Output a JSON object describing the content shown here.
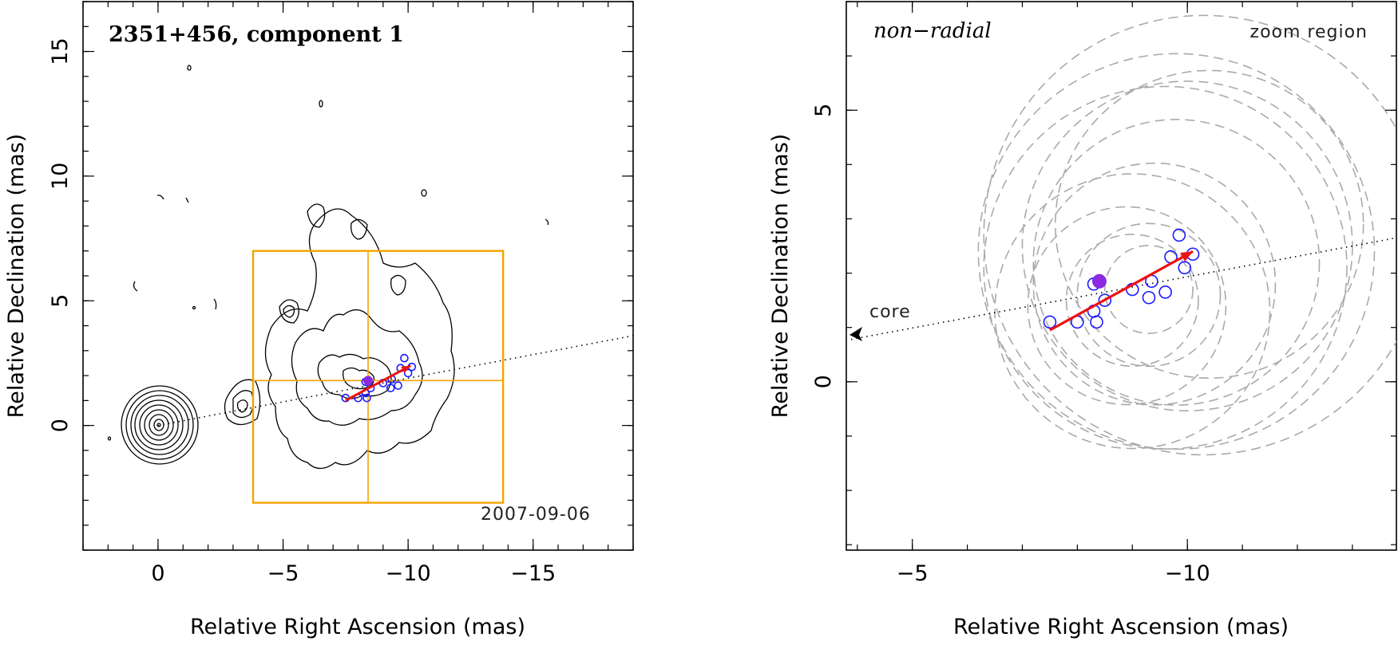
{
  "chart_data": [
    {
      "type": "scatter",
      "title": "2351+456, component 1",
      "epoch_label": "2007-09-06",
      "xlabel": "Relative Right Ascension (mas)",
      "ylabel": "Relative Declination (mas)",
      "xlim": [
        3,
        -19
      ],
      "ylim": [
        -5,
        17
      ],
      "xticks": [
        0,
        -5,
        -10,
        -15
      ],
      "yticks": [
        0,
        5,
        10,
        15
      ],
      "xtick_labels": [
        "0",
        "−5",
        "−10",
        "−15"
      ],
      "ytick_labels": [
        "0",
        "5",
        "10",
        "15"
      ],
      "zoom_box": {
        "x": [
          -3.8,
          -13.8
        ],
        "y": [
          -3.1,
          7.0
        ],
        "cross_x": -8.4,
        "cross_y": 1.8
      },
      "trajectory_line": {
        "x": [
          0,
          -19
        ],
        "y": [
          0,
          3.6
        ]
      },
      "motion_arrow": {
        "from": [
          -7.5,
          1.0
        ],
        "to": [
          -10.1,
          2.4
        ],
        "color": "#ee1111"
      },
      "positions_open": [
        {
          "x": -7.5,
          "y": 1.1
        },
        {
          "x": -8.0,
          "y": 1.1
        },
        {
          "x": -8.3,
          "y": 1.3
        },
        {
          "x": -8.35,
          "y": 1.1
        },
        {
          "x": -8.5,
          "y": 1.5
        },
        {
          "x": -9.0,
          "y": 1.7
        },
        {
          "x": -9.3,
          "y": 1.5
        },
        {
          "x": -9.35,
          "y": 1.85
        },
        {
          "x": -9.6,
          "y": 1.6
        },
        {
          "x": -9.7,
          "y": 2.3
        },
        {
          "x": -9.85,
          "y": 2.7
        },
        {
          "x": -10.0,
          "y": 2.1
        },
        {
          "x": -10.15,
          "y": 2.35
        },
        {
          "x": -8.3,
          "y": 1.75
        }
      ],
      "position_filled": {
        "x": -8.4,
        "y": 1.8
      }
    },
    {
      "type": "scatter",
      "title": "non−radial",
      "zoom_label": "zoom region",
      "core_label": "core",
      "xlabel": "Relative Right Ascension (mas)",
      "ylabel": "Relative Declination (mas)",
      "xlim": [
        -3.8,
        -13.8
      ],
      "ylim": [
        -3.1,
        7.0
      ],
      "xticks": [
        -5,
        -10
      ],
      "yticks": [
        0,
        5
      ],
      "xtick_labels": [
        "−5",
        "−10"
      ],
      "ytick_labels": [
        "0",
        "5"
      ],
      "trajectory_line": {
        "x": [
          -3.8,
          -13.8
        ],
        "y": [
          0.78,
          2.65
        ]
      },
      "motion_arrow": {
        "from": [
          -7.5,
          0.95
        ],
        "to": [
          -10.1,
          2.4
        ],
        "color": "#ee1111"
      },
      "positions_open": [
        {
          "x": -7.5,
          "y": 1.1
        },
        {
          "x": -8.0,
          "y": 1.1
        },
        {
          "x": -8.3,
          "y": 1.3
        },
        {
          "x": -8.35,
          "y": 1.1
        },
        {
          "x": -8.5,
          "y": 1.5
        },
        {
          "x": -9.0,
          "y": 1.7
        },
        {
          "x": -9.3,
          "y": 1.55
        },
        {
          "x": -9.35,
          "y": 1.85
        },
        {
          "x": -9.6,
          "y": 1.65
        },
        {
          "x": -9.7,
          "y": 2.3
        },
        {
          "x": -9.85,
          "y": 2.7
        },
        {
          "x": -9.95,
          "y": 2.1
        },
        {
          "x": -10.1,
          "y": 2.35
        },
        {
          "x": -8.3,
          "y": 1.8
        }
      ],
      "position_filled": {
        "x": -8.4,
        "y": 1.85
      },
      "uncertainty_circles": [
        {
          "x": -9.3,
          "y": 1.7,
          "r": 0.8
        },
        {
          "x": -9.3,
          "y": 1.6,
          "r": 1.3
        },
        {
          "x": -9.0,
          "y": 1.5,
          "r": 1.2
        },
        {
          "x": -8.9,
          "y": 1.4,
          "r": 1.8
        },
        {
          "x": -9.4,
          "y": 1.8,
          "r": 2.2
        },
        {
          "x": -9.8,
          "y": 2.2,
          "r": 2.6
        },
        {
          "x": -10.0,
          "y": 2.5,
          "r": 3.0
        },
        {
          "x": -9.6,
          "y": 2.1,
          "r": 3.3
        },
        {
          "x": -9.8,
          "y": 2.4,
          "r": 3.6
        },
        {
          "x": -10.3,
          "y": 2.7,
          "r": 4.0
        },
        {
          "x": -10.4,
          "y": 2.9,
          "r": 2.8
        },
        {
          "x": -9.0,
          "y": 1.3,
          "r": 2.5
        }
      ]
    }
  ]
}
